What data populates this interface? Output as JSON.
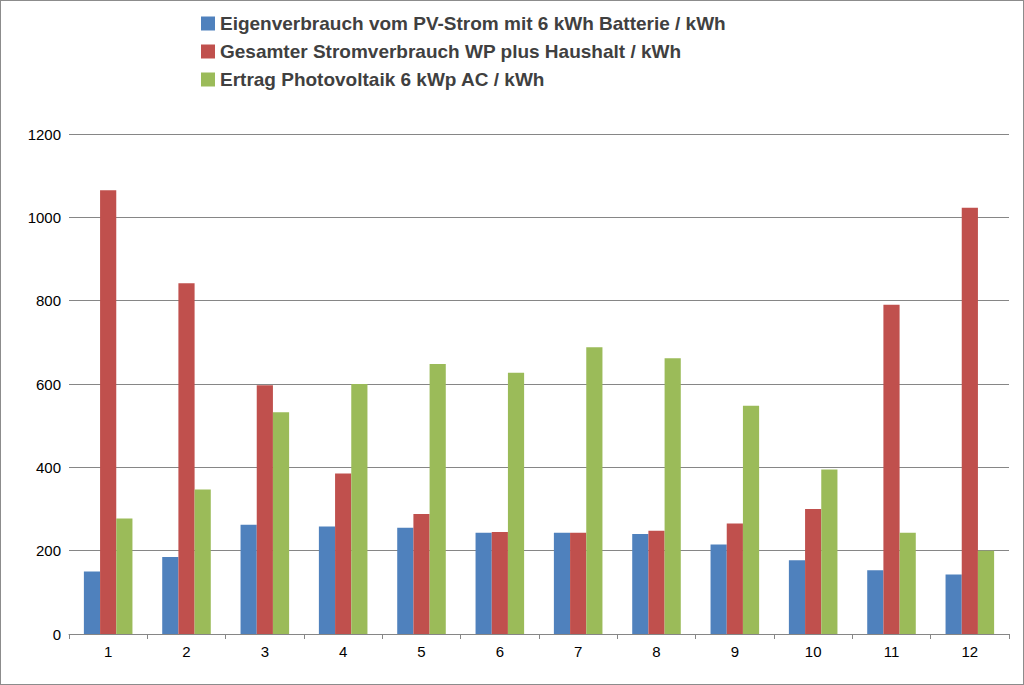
{
  "chart_data": {
    "type": "bar",
    "categories": [
      "1",
      "2",
      "3",
      "4",
      "5",
      "6",
      "7",
      "8",
      "9",
      "10",
      "11",
      "12"
    ],
    "series": [
      {
        "name": "Eigenverbrauch vom PV-Strom mit 6 kWh Batterie / kWh",
        "color": "#4f81bd",
        "values": [
          150,
          185,
          262,
          258,
          255,
          243,
          243,
          240,
          215,
          177,
          153,
          143
        ]
      },
      {
        "name": "Gesamter Stromverbrauch WP plus Haushalt / kWh",
        "color": "#c0504d",
        "values": [
          1065,
          842,
          597,
          385,
          288,
          245,
          243,
          248,
          265,
          300,
          790,
          1023
        ]
      },
      {
        "name": "Ertrag Photovoltaik 6 kWp AC / kWh",
        "color": "#9bbb59",
        "values": [
          277,
          347,
          532,
          600,
          648,
          627,
          688,
          662,
          548,
          395,
          243,
          200
        ]
      }
    ],
    "ylim": [
      0,
      1200
    ],
    "yticks": [
      0,
      200,
      400,
      600,
      800,
      1000,
      1200
    ],
    "grid": true,
    "legend": "top"
  }
}
